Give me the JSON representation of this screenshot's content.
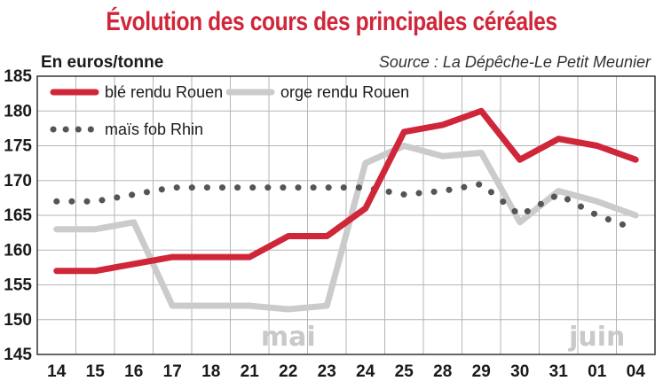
{
  "title": "Évolution des cours des principales céréales",
  "unit_label": "En euros/tonne",
  "source": "Source : La Dépêche-Le Petit Meunier",
  "colors": {
    "ble": "#d0263a",
    "orge": "#cbcbcb",
    "mais": "#555555",
    "title": "#d0263a",
    "month": "#c9c9c9"
  },
  "chart_data": {
    "type": "line",
    "title": "Évolution des cours des principales céréales",
    "ylabel": "En euros/tonne",
    "ylim": [
      145,
      185
    ],
    "yticks": [
      145,
      150,
      155,
      160,
      165,
      170,
      175,
      180,
      185
    ],
    "categories": [
      "14",
      "15",
      "16",
      "17",
      "18",
      "21",
      "22",
      "23",
      "24",
      "25",
      "28",
      "29",
      "30",
      "31",
      "01",
      "04"
    ],
    "month_labels": [
      {
        "text": "mai",
        "at": "22"
      },
      {
        "text": "juin",
        "at": "01"
      }
    ],
    "grid": true,
    "legend_position": "top-left",
    "series": [
      {
        "name": "blé rendu Rouen",
        "style": "solid",
        "values": [
          157,
          157,
          158,
          159,
          159,
          159,
          162,
          162,
          166,
          177,
          178,
          180,
          173,
          176,
          175,
          173
        ]
      },
      {
        "name": "orge rendu Rouen",
        "style": "solid",
        "values": [
          163,
          163,
          164,
          152,
          152,
          152,
          151.5,
          152,
          172.5,
          175,
          173.5,
          174,
          164,
          168.5,
          167,
          165
        ]
      },
      {
        "name": "maïs fob Rhin",
        "style": "dotted",
        "values": [
          167,
          167,
          168,
          169,
          169,
          169,
          169,
          169,
          169,
          168,
          168.5,
          169.5,
          165,
          168,
          165,
          163
        ]
      }
    ]
  }
}
